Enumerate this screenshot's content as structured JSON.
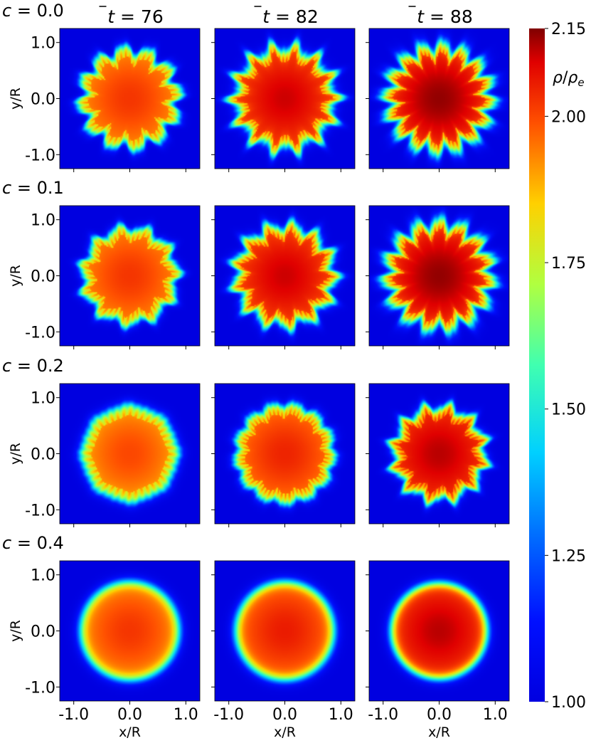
{
  "chart_data": {
    "type": "heatmap",
    "description_grid": "4 rows (c values) x 3 columns (time snapshots) of 2D density maps",
    "row_labels": [
      "c = 0.0",
      "c = 0.1",
      "c = 0.2",
      "c = 0.4"
    ],
    "c_values": [
      0.0,
      0.1,
      0.2,
      0.4
    ],
    "col_titles": [
      "t = 76",
      "t = 82",
      "t = 88"
    ],
    "t_values": [
      76,
      82,
      88
    ],
    "xlabel": "x/R",
    "ylabel": "y/R",
    "x_ticks": [
      "-1.0",
      "0.0",
      "1.0"
    ],
    "y_ticks": [
      "1.0",
      "0.0",
      "-1.0"
    ],
    "xlim": [
      -1.25,
      1.25
    ],
    "ylim": [
      -1.25,
      1.25
    ],
    "colorbar": {
      "label": "ρ/ρe",
      "min": 1.0,
      "max": 2.15,
      "ticks": [
        "2.15",
        "2.00",
        "1.75",
        "1.50",
        "1.25",
        "1.00"
      ],
      "tick_values": [
        2.15,
        2.0,
        1.75,
        1.5,
        1.25,
        1.0
      ],
      "colormap": "jet"
    },
    "panels": [
      [
        {
          "radius": 0.88,
          "lobes": 12,
          "amp": 0.09,
          "mix": 0.18,
          "core": 0.85
        },
        {
          "radius": 0.92,
          "lobes": 14,
          "amp": 0.1,
          "mix": 0.24,
          "core": 0.92
        },
        {
          "radius": 0.94,
          "lobes": 16,
          "amp": 0.1,
          "mix": 0.3,
          "core": 0.95
        }
      ],
      [
        {
          "radius": 0.86,
          "lobes": 11,
          "amp": 0.07,
          "mix": 0.16,
          "core": 0.85
        },
        {
          "radius": 0.9,
          "lobes": 13,
          "amp": 0.09,
          "mix": 0.22,
          "core": 0.92
        },
        {
          "radius": 0.95,
          "lobes": 15,
          "amp": 0.1,
          "mix": 0.3,
          "core": 0.95
        }
      ],
      [
        {
          "radius": 0.86,
          "lobes": 8,
          "amp": 0.02,
          "mix": 0.2,
          "core": 0.83
        },
        {
          "radius": 0.88,
          "lobes": 13,
          "amp": 0.04,
          "mix": 0.18,
          "core": 0.87
        },
        {
          "radius": 0.84,
          "lobes": 12,
          "amp": 0.08,
          "mix": 0.18,
          "core": 0.93
        }
      ],
      [
        {
          "radius": 0.88,
          "lobes": 0,
          "amp": 0.0,
          "mix": 0.22,
          "core": 0.85
        },
        {
          "radius": 0.88,
          "lobes": 0,
          "amp": 0.0,
          "mix": 0.22,
          "core": 0.88
        },
        {
          "radius": 0.86,
          "lobes": 0,
          "amp": 0.0,
          "mix": 0.2,
          "core": 0.93
        }
      ]
    ]
  }
}
